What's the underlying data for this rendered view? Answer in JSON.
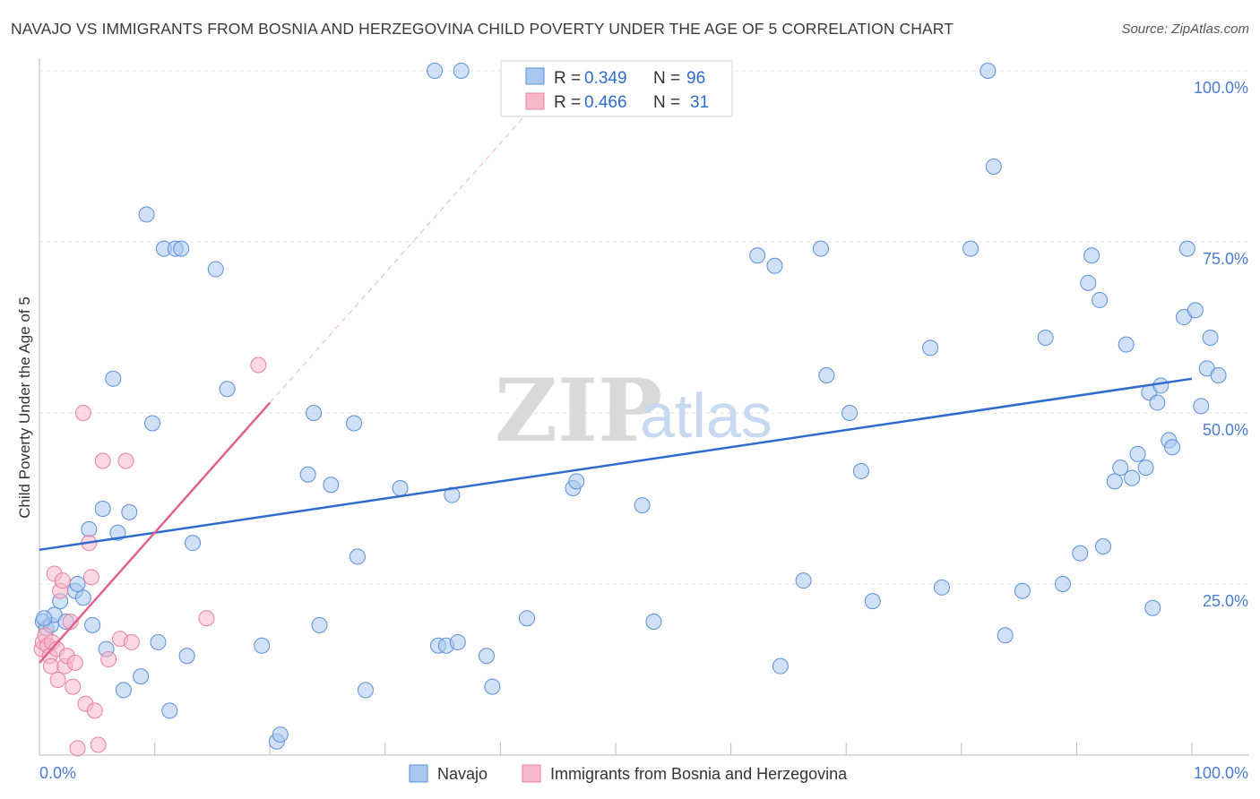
{
  "title": "NAVAJO VS IMMIGRANTS FROM BOSNIA AND HERZEGOVINA CHILD POVERTY UNDER THE AGE OF 5 CORRELATION CHART",
  "source": "Source: ZipAtlas.com",
  "watermark": {
    "zip": "ZIP",
    "atlas": "atlas"
  },
  "legend": {
    "r_label": "R =",
    "n_label": "N =",
    "rows": [
      {
        "r": "0.349",
        "n": "96"
      },
      {
        "r": "0.466",
        "n": "31"
      }
    ]
  },
  "colors": {
    "navajo_fill": "#a9c8f0",
    "navajo_stroke": "#5b8fd8",
    "navajo_line": "#2f6bcd",
    "bosnia_fill": "#f7b8cb",
    "bosnia_stroke": "#e87fa0",
    "bosnia_line": "#e2628f",
    "grid": "#dddddd"
  },
  "chart_data": {
    "type": "scatter",
    "title": "NAVAJO VS IMMIGRANTS FROM BOSNIA AND HERZEGOVINA CHILD POVERTY UNDER THE AGE OF 5 CORRELATION CHART",
    "xlabel": "",
    "ylabel": "Child Poverty Under the Age of 5",
    "xlim": [
      0,
      100
    ],
    "ylim": [
      0,
      100
    ],
    "x_tick_labels": [
      "0.0%",
      "100.0%"
    ],
    "y_tick_labels": [
      "25.0%",
      "50.0%",
      "75.0%",
      "100.0%"
    ],
    "y_ticks": [
      25,
      50,
      75,
      100
    ],
    "series": [
      {
        "name": "Navajo",
        "r": 0.349,
        "n": 96,
        "trend": {
          "x": [
            0,
            100
          ],
          "y": [
            30,
            55
          ]
        },
        "points": [
          [
            0.3,
            19.5
          ],
          [
            0.6,
            18.5
          ],
          [
            1.0,
            19.0
          ],
          [
            1.3,
            20.5
          ],
          [
            1.8,
            22.5
          ],
          [
            2.3,
            19.5
          ],
          [
            3.1,
            24
          ],
          [
            3.3,
            25
          ],
          [
            3.8,
            23
          ],
          [
            4.3,
            33
          ],
          [
            4.6,
            19
          ],
          [
            5.5,
            36
          ],
          [
            5.8,
            15.5
          ],
          [
            6.4,
            55
          ],
          [
            6.8,
            32.5
          ],
          [
            7.3,
            9.5
          ],
          [
            7.8,
            35.5
          ],
          [
            8.8,
            11.5
          ],
          [
            9.3,
            79
          ],
          [
            9.8,
            48.5
          ],
          [
            10.3,
            16.5
          ],
          [
            10.8,
            74
          ],
          [
            11.3,
            6.5
          ],
          [
            11.8,
            74
          ],
          [
            12.3,
            74
          ],
          [
            12.8,
            14.5
          ],
          [
            13.3,
            31
          ],
          [
            15.3,
            71
          ],
          [
            16.3,
            53.5
          ],
          [
            19.3,
            16
          ],
          [
            20.6,
            2
          ],
          [
            20.9,
            3
          ],
          [
            23.3,
            41
          ],
          [
            23.8,
            50
          ],
          [
            24.3,
            19
          ],
          [
            25.3,
            39.5
          ],
          [
            27.3,
            48.5
          ],
          [
            27.6,
            29
          ],
          [
            28.3,
            9.5
          ],
          [
            31.3,
            39
          ],
          [
            34.3,
            100
          ],
          [
            34.6,
            16
          ],
          [
            35.3,
            16
          ],
          [
            35.8,
            38
          ],
          [
            36.3,
            16.5
          ],
          [
            36.6,
            100
          ],
          [
            38.8,
            14.5
          ],
          [
            39.3,
            10
          ],
          [
            42.3,
            20
          ],
          [
            46.3,
            39
          ],
          [
            46.6,
            40
          ],
          [
            52.3,
            36.5
          ],
          [
            53.3,
            19.5
          ],
          [
            62.3,
            73
          ],
          [
            63.8,
            71.5
          ],
          [
            64.3,
            13
          ],
          [
            66.3,
            25.5
          ],
          [
            67.8,
            74
          ],
          [
            68.3,
            55.5
          ],
          [
            70.3,
            50
          ],
          [
            71.3,
            41.5
          ],
          [
            72.3,
            22.5
          ],
          [
            77.3,
            59.5
          ],
          [
            78.3,
            24.5
          ],
          [
            80.8,
            74
          ],
          [
            82.3,
            100
          ],
          [
            82.8,
            86
          ],
          [
            83.8,
            17.5
          ],
          [
            85.3,
            24
          ],
          [
            87.3,
            61
          ],
          [
            88.8,
            25
          ],
          [
            90.3,
            29.5
          ],
          [
            91.0,
            69
          ],
          [
            91.3,
            73
          ],
          [
            92.0,
            66.5
          ],
          [
            92.3,
            30.5
          ],
          [
            93.3,
            40
          ],
          [
            93.8,
            42
          ],
          [
            94.3,
            60
          ],
          [
            94.8,
            40.5
          ],
          [
            95.3,
            44
          ],
          [
            96.0,
            42
          ],
          [
            96.3,
            53
          ],
          [
            96.6,
            21.5
          ],
          [
            97.0,
            51.5
          ],
          [
            97.3,
            54
          ],
          [
            98.0,
            46
          ],
          [
            98.3,
            45
          ],
          [
            99.3,
            64
          ],
          [
            99.6,
            74
          ],
          [
            100.3,
            65
          ],
          [
            100.8,
            51
          ],
          [
            101.3,
            56.5
          ],
          [
            101.6,
            61
          ],
          [
            102.3,
            55.5
          ],
          [
            0.4,
            20
          ]
        ]
      },
      {
        "name": "Immigrants from Bosnia and Herzegovina",
        "r": 0.466,
        "n": 31,
        "trend": {
          "x": [
            0,
            20
          ],
          "y": [
            13.5,
            51.5
          ],
          "extended": {
            "x": [
              20,
              44
            ],
            "y": [
              51.5,
              97
            ]
          }
        },
        "points": [
          [
            0.2,
            15.5
          ],
          [
            0.3,
            16.5
          ],
          [
            0.5,
            17.5
          ],
          [
            0.7,
            16
          ],
          [
            0.9,
            14.5
          ],
          [
            1.0,
            13
          ],
          [
            1.1,
            16.5
          ],
          [
            1.3,
            26.5
          ],
          [
            1.5,
            15.5
          ],
          [
            1.6,
            11
          ],
          [
            1.8,
            24
          ],
          [
            2.0,
            25.5
          ],
          [
            2.2,
            13
          ],
          [
            2.4,
            14.5
          ],
          [
            2.7,
            19.5
          ],
          [
            2.9,
            10
          ],
          [
            3.1,
            13.5
          ],
          [
            3.3,
            1
          ],
          [
            3.8,
            50
          ],
          [
            4.0,
            7.5
          ],
          [
            4.3,
            31
          ],
          [
            4.5,
            26
          ],
          [
            4.8,
            6.5
          ],
          [
            5.1,
            1.5
          ],
          [
            5.5,
            43
          ],
          [
            6.0,
            14
          ],
          [
            7.0,
            17
          ],
          [
            7.5,
            43
          ],
          [
            8.0,
            16.5
          ],
          [
            14.5,
            20
          ],
          [
            19.0,
            57
          ]
        ]
      }
    ]
  },
  "bottom_legend": {
    "items": [
      {
        "label": "Navajo"
      },
      {
        "label": "Immigrants from Bosnia and Herzegovina"
      }
    ]
  }
}
